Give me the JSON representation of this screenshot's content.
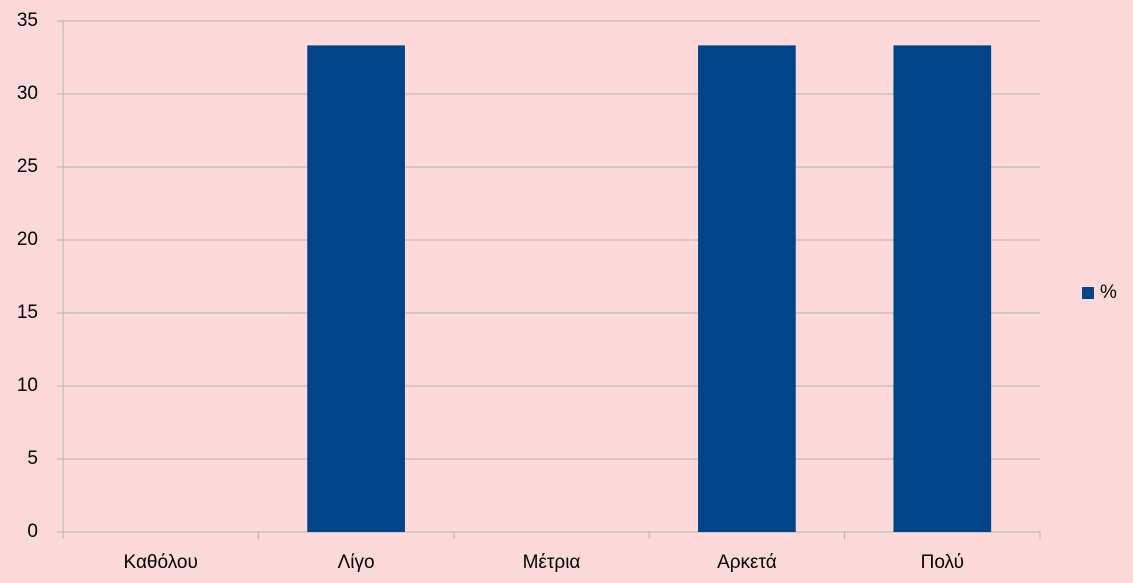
{
  "chart_data": {
    "type": "bar",
    "categories": [
      "Καθόλου",
      "Λίγο",
      "Μέτρια",
      "Αρκετά",
      "Πολύ"
    ],
    "series": [
      {
        "name": "%",
        "color": "#00458a",
        "values": [
          0,
          33.33,
          0,
          33.33,
          33.33
        ]
      }
    ],
    "ylim": [
      0,
      35
    ],
    "yticks": [
      0,
      5,
      10,
      15,
      20,
      25,
      30,
      35
    ],
    "grid": true,
    "legend": "right"
  }
}
